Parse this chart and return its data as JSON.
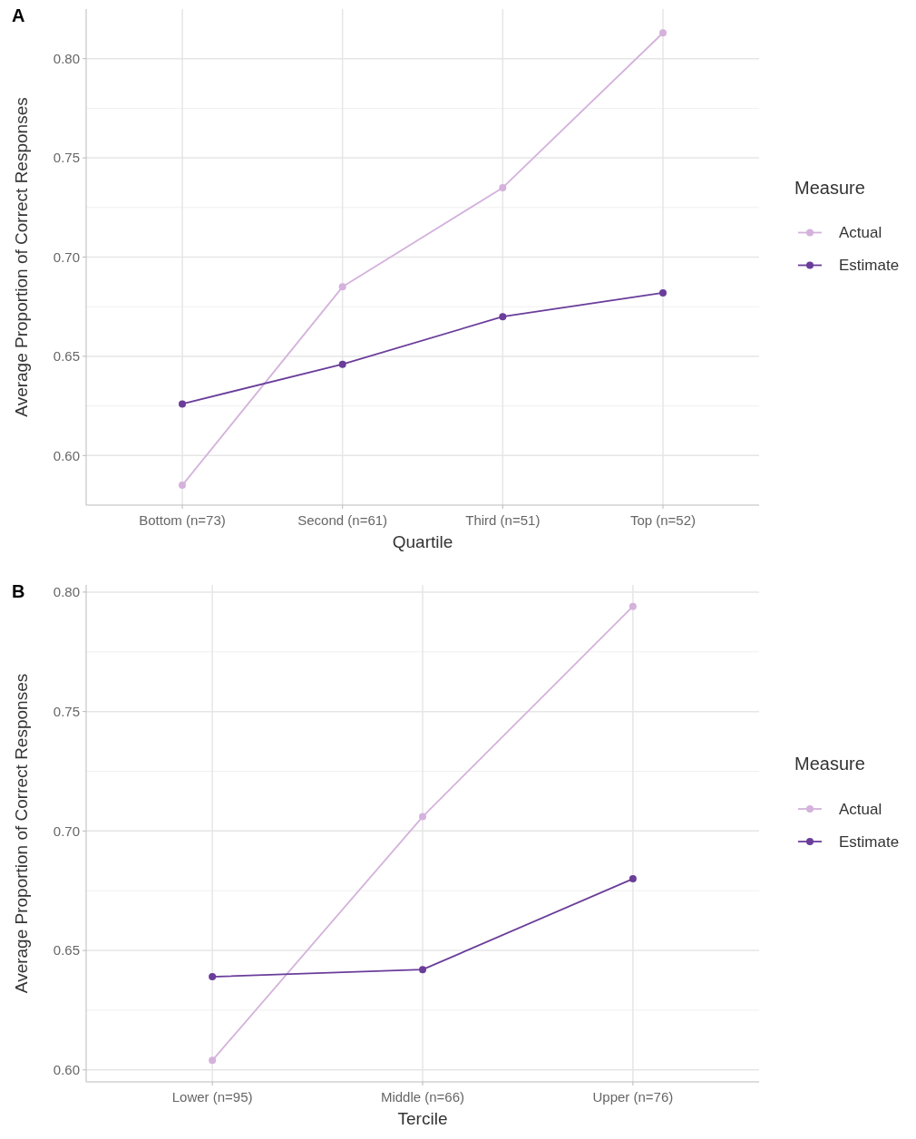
{
  "chart_data": [
    {
      "type": "line",
      "annotations": [
        "A"
      ],
      "xlabel": "Quartile",
      "ylabel": "Average Proportion of Correct Responses",
      "legend_title": "Measure",
      "categories": [
        "Bottom (n=73)",
        "Second (n=61)",
        "Third (n=51)",
        "Top (n=52)"
      ],
      "series": [
        {
          "name": "Actual",
          "color": "#d4b2dc",
          "values": [
            0.585,
            0.685,
            0.735,
            0.813
          ]
        },
        {
          "name": "Estimate",
          "color": "#6a3d9a",
          "values": [
            0.626,
            0.646,
            0.67,
            0.682
          ]
        }
      ],
      "ylim": [
        0.575,
        0.825
      ],
      "yticks": [
        {
          "value": 0.6,
          "label": "0.60"
        },
        {
          "value": 0.65,
          "label": "0.65"
        },
        {
          "value": 0.7,
          "label": "0.70"
        },
        {
          "value": 0.75,
          "label": "0.75"
        },
        {
          "value": 0.8,
          "label": "0.80"
        }
      ],
      "grid": true,
      "legend": "right",
      "marker": "circle",
      "line_style": "solid"
    },
    {
      "type": "line",
      "annotations": [
        "B"
      ],
      "xlabel": "Tercile",
      "ylabel": "Average Proportion of Correct Responses",
      "legend_title": "Measure",
      "categories": [
        "Lower (n=95)",
        "Middle (n=66)",
        "Upper (n=76)"
      ],
      "series": [
        {
          "name": "Actual",
          "color": "#d4b2dc",
          "values": [
            0.604,
            0.706,
            0.794
          ]
        },
        {
          "name": "Estimate",
          "color": "#6a3d9a",
          "values": [
            0.639,
            0.642,
            0.68
          ]
        }
      ],
      "ylim": [
        0.595,
        0.803
      ],
      "yticks": [
        {
          "value": 0.6,
          "label": "0.60"
        },
        {
          "value": 0.65,
          "label": "0.65"
        },
        {
          "value": 0.7,
          "label": "0.70"
        },
        {
          "value": 0.75,
          "label": "0.75"
        },
        {
          "value": 0.8,
          "label": "0.80"
        }
      ],
      "grid": true,
      "legend": "right",
      "marker": "circle",
      "line_style": "solid"
    }
  ]
}
